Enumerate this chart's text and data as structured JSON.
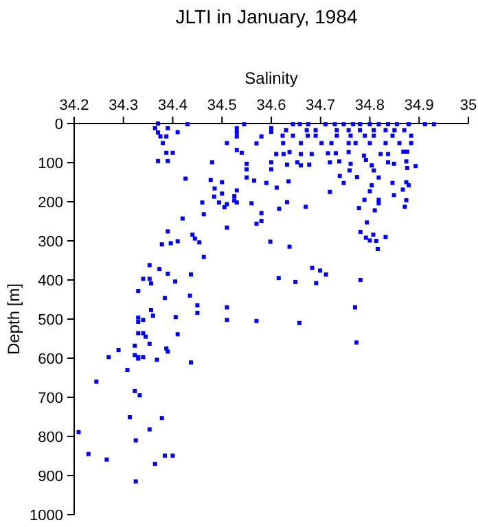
{
  "chart_data": {
    "type": "scatter",
    "title": "JLTI in January, 1984",
    "xlabel": "Salinity",
    "ylabel": "Depth [m]",
    "marker": "square",
    "xlim": [
      34.2,
      35
    ],
    "xticks": [
      34.2,
      34.3,
      34.4,
      34.5,
      34.6,
      34.7,
      34.8,
      34.9,
      35
    ],
    "ylim": [
      1000,
      0
    ],
    "yticks": [
      0,
      100,
      200,
      300,
      400,
      500,
      600,
      700,
      800,
      900,
      1000
    ],
    "series": [
      {
        "color": "#0000ff",
        "x": [
          34.37,
          34.364,
          34.39,
          34.43,
          34.37,
          34.41,
          34.375,
          34.387,
          34.38,
          34.387,
          34.4,
          34.37,
          34.39,
          34.426,
          34.48,
          34.53,
          34.545,
          34.53,
          34.53,
          34.51,
          34.57,
          34.58,
          34.6,
          34.53,
          34.54,
          34.55,
          34.55,
          34.55,
          34.565,
          34.59,
          34.6,
          34.6,
          34.61,
          34.477,
          34.5,
          34.485,
          34.5,
          34.53,
          34.484,
          34.525,
          34.525,
          34.494,
          34.51,
          34.53,
          34.505,
          34.46,
          34.56,
          34.58,
          34.58,
          34.57,
          34.463,
          34.42,
          34.51,
          34.39,
          34.44,
          34.445,
          34.378,
          34.396,
          34.41,
          34.454,
          34.598,
          34.463,
          34.353,
          34.373,
          34.39,
          34.437,
          34.34,
          34.353,
          34.356,
          34.405,
          34.33,
          34.384,
          34.435,
          34.45,
          34.51,
          34.356,
          34.45,
          34.33,
          34.34,
          34.33,
          34.36,
          34.406,
          34.51,
          34.57,
          34.33,
          34.34,
          34.345,
          34.41,
          34.353,
          34.387,
          34.39,
          34.323,
          34.29,
          34.27,
          34.323,
          34.33,
          34.34,
          34.33,
          34.368,
          34.437,
          34.308,
          34.245,
          34.323,
          34.333,
          34.313,
          34.378,
          34.353,
          34.209,
          34.325,
          34.229,
          34.266,
          34.384,
          34.4,
          34.364,
          34.325,
          34.77,
          34.657,
          34.773,
          34.6,
          34.644,
          34.658,
          34.675,
          34.71,
          34.729,
          34.747,
          34.766,
          34.78,
          34.8,
          34.818,
          34.837,
          34.855,
          34.879,
          34.912,
          34.93,
          34.63,
          34.672,
          34.69,
          34.733,
          34.757,
          34.78,
          34.808,
          34.832,
          34.85,
          34.87,
          34.623,
          34.644,
          34.674,
          34.69,
          34.733,
          34.761,
          34.79,
          34.808,
          34.846,
          34.884,
          34.624,
          34.66,
          34.702,
          34.722,
          34.757,
          34.771,
          34.8,
          34.832,
          34.86,
          34.884,
          34.625,
          34.637,
          34.66,
          34.682,
          34.715,
          34.731,
          34.757,
          34.788,
          34.822,
          34.837,
          34.868,
          34.876,
          34.632,
          34.653,
          34.66,
          34.677,
          34.719,
          34.738,
          34.761,
          34.792,
          34.804,
          34.837,
          34.849,
          34.874,
          34.876,
          34.893,
          34.759,
          34.808,
          34.739,
          34.774,
          34.818,
          34.635,
          34.747,
          34.846,
          34.874,
          34.879,
          34.611,
          34.804,
          34.719,
          34.8,
          34.849,
          34.867,
          34.632,
          34.67,
          34.789,
          34.818,
          34.874,
          34.871,
          34.818,
          34.616,
          34.778,
          34.81,
          34.794,
          34.781,
          34.807,
          34.832,
          34.792,
          34.8,
          34.813,
          34.816,
          34.637,
          34.683,
          34.699,
          34.711,
          34.615,
          34.649,
          34.691,
          34.781
        ],
        "values": [
          0,
          12,
          12,
          2,
          23,
          22,
          33,
          33,
          50,
          75,
          75,
          96,
          96,
          141,
          99,
          12,
          2,
          22,
          33,
          50,
          51,
          33,
          12,
          68,
          75,
          103,
          117,
          138,
          146,
          152,
          99,
          117,
          78,
          144,
          150,
          166,
          179,
          171,
          187,
          186,
          197,
          202,
          206,
          202,
          214,
          202,
          204,
          229,
          249,
          256,
          232,
          243,
          266,
          276,
          284,
          294,
          309,
          306,
          301,
          304,
          302,
          341,
          362,
          372,
          384,
          386,
          397,
          397,
          409,
          404,
          428,
          446,
          440,
          465,
          470,
          477,
          484,
          496,
          502,
          507,
          491,
          495,
          502,
          505,
          536,
          536,
          545,
          539,
          563,
          575,
          583,
          568,
          579,
          597,
          592,
          597,
          597,
          601,
          604,
          611,
          630,
          660,
          684,
          695,
          751,
          753,
          782,
          789,
          810,
          845,
          859,
          849,
          849,
          870,
          915,
          470,
          510,
          560,
          21,
          2,
          2,
          2,
          2,
          2,
          2,
          2,
          2,
          2,
          2,
          2,
          2,
          2,
          2,
          2,
          17,
          17,
          17,
          17,
          17,
          17,
          17,
          17,
          17,
          17,
          31,
          31,
          31,
          31,
          31,
          31,
          31,
          31,
          31,
          31,
          50,
          50,
          50,
          50,
          50,
          50,
          50,
          50,
          50,
          50,
          78,
          73,
          78,
          78,
          76,
          76,
          73,
          82,
          78,
          78,
          72,
          72,
          105,
          99,
          107,
          105,
          99,
          97,
          103,
          93,
          107,
          99,
          103,
          97,
          114,
          109,
          120,
          120,
          134,
          137,
          138,
          148,
          152,
          152,
          150,
          158,
          164,
          158,
          175,
          173,
          183,
          169,
          201,
          213,
          195,
          195,
          196,
          213,
          204,
          218,
          216,
          222,
          253,
          277,
          284,
          290,
          292,
          299,
          300,
          321,
          315,
          369,
          376,
          386,
          395,
          405,
          408,
          400
        ]
      }
    ]
  }
}
